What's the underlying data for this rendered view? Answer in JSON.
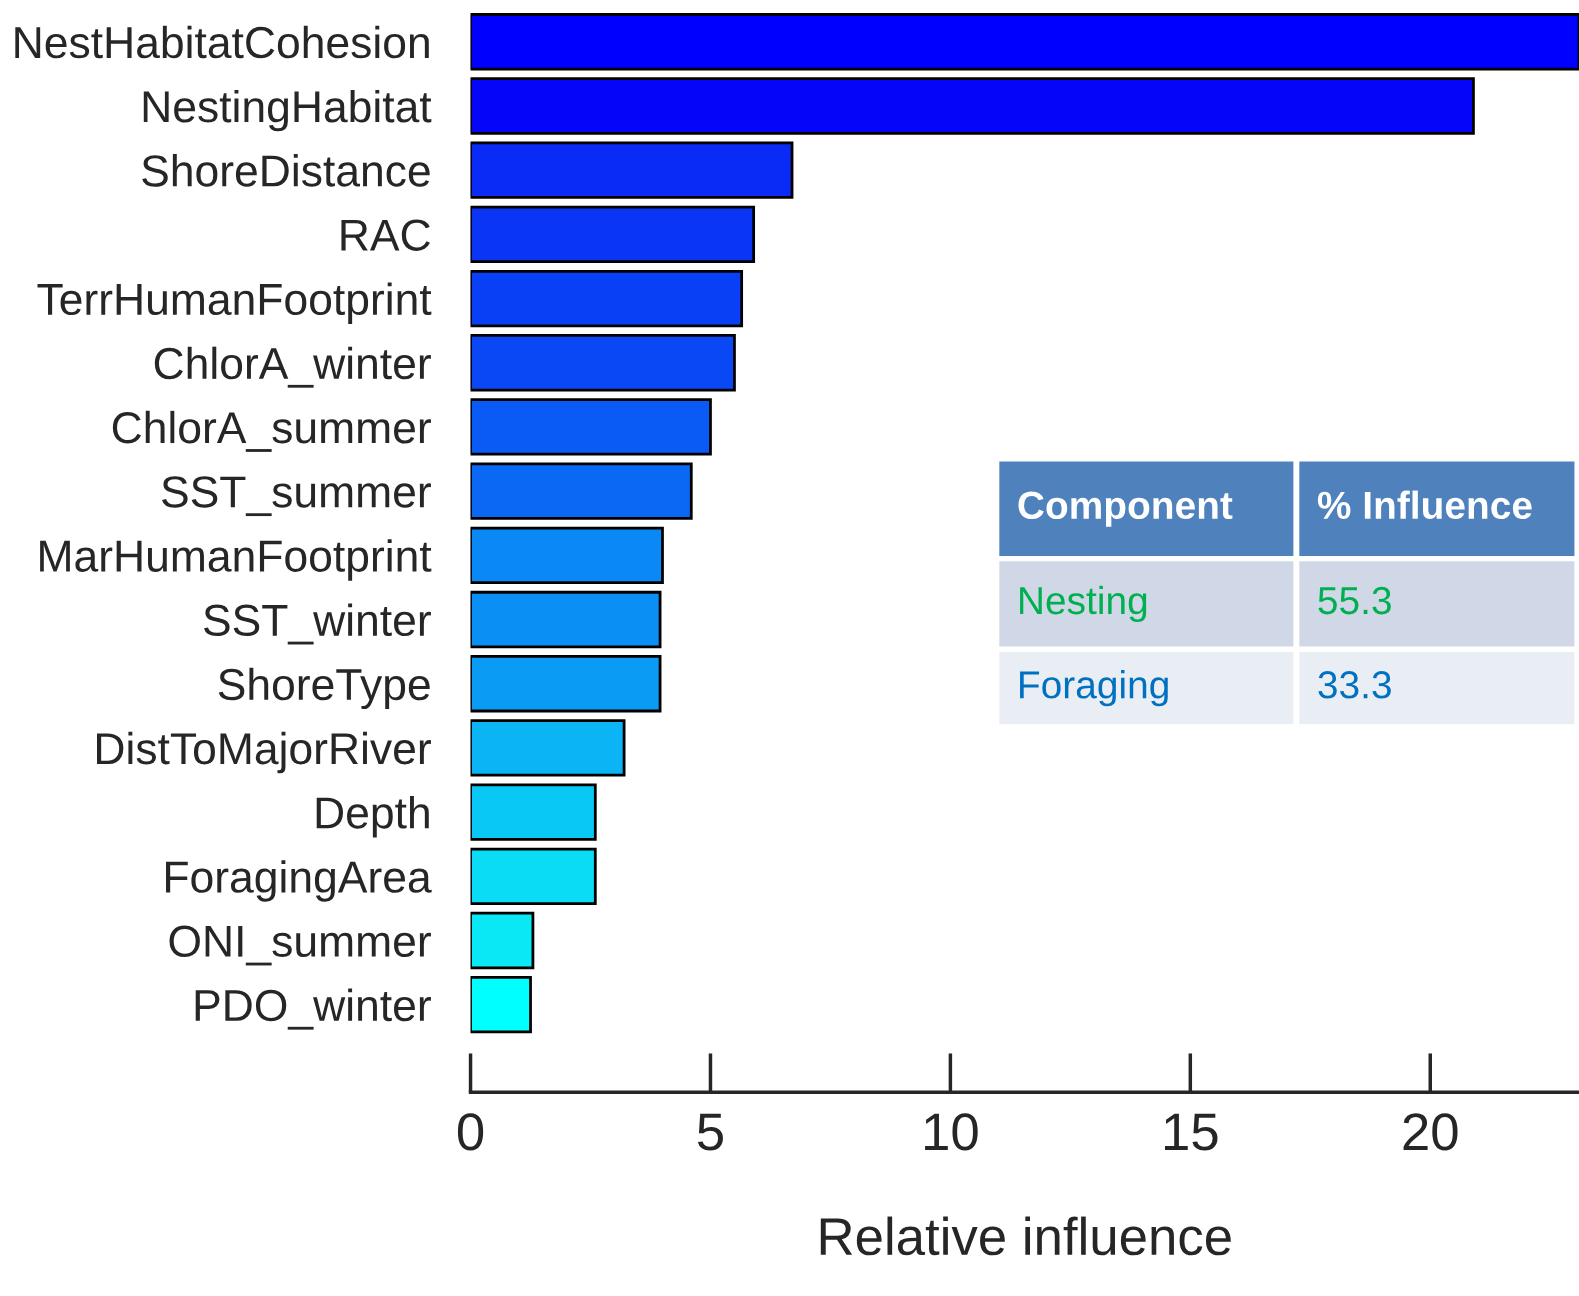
{
  "chart_data": {
    "type": "bar",
    "orientation": "horizontal",
    "xlabel": "Relative influence",
    "categories": [
      "NestHabitatCohesion",
      "NestingHabitat",
      "ShoreDistance",
      "RAC",
      "TerrHumanFootprint",
      "ChlorA_winter",
      "ChlorA_summer",
      "SST_summer",
      "MarHumanFootprint",
      "SST_winter",
      "ShoreType",
      "DistToMajorRiver",
      "Depth",
      "ForagingArea",
      "ONI_summer",
      "PDO_winter"
    ],
    "values": [
      23.1,
      20.9,
      6.7,
      5.9,
      5.65,
      5.5,
      5.0,
      4.6,
      4.0,
      3.95,
      3.95,
      3.2,
      2.6,
      2.6,
      1.3,
      1.25
    ],
    "colors": [
      "#0000ff",
      "#0505f8",
      "#0a2af5",
      "#0a35f5",
      "#0a40f5",
      "#0a48f5",
      "#0a5af5",
      "#0a68f5",
      "#0a88f5",
      "#0a90f5",
      "#0a9cf5",
      "#0ab4f5",
      "#0ac8f5",
      "#0adcf5",
      "#0ae8f5",
      "#00ffff"
    ],
    "xlim": [
      0,
      23.1
    ],
    "xticks": [
      0,
      5,
      10,
      15,
      20
    ],
    "grid": false,
    "legend": false,
    "annotations": [
      "Component",
      "% Influence",
      "Nesting",
      "55.3",
      "Foraging",
      "33.3"
    ]
  }
}
